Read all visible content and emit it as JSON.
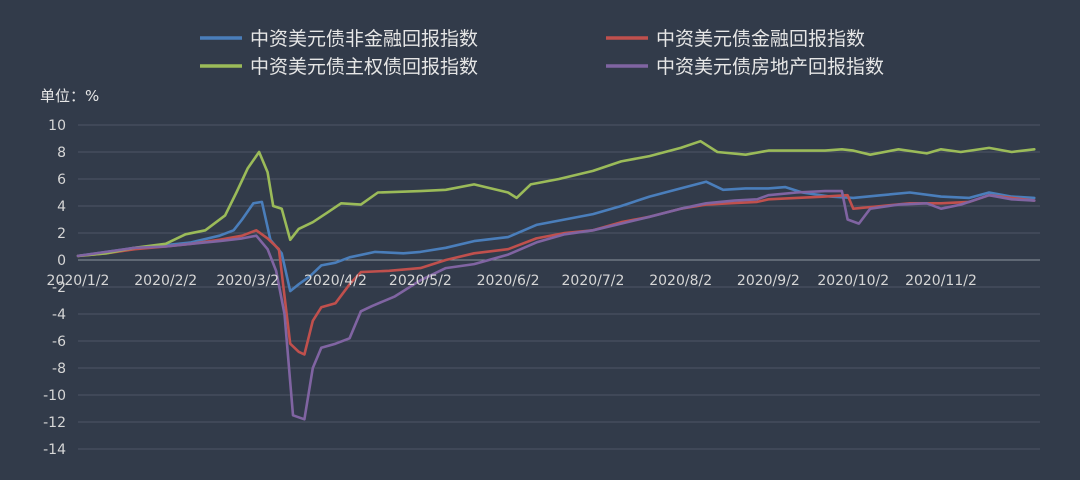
{
  "chart_data": {
    "type": "line",
    "title": "",
    "unit_label": "单位：%",
    "xlabel": "",
    "ylabel": "",
    "ylim": [
      -14,
      10
    ],
    "yticks": [
      10,
      8,
      6,
      4,
      2,
      0,
      -2,
      -4,
      -6,
      -8,
      -10,
      -12,
      -14
    ],
    "grid": true,
    "legend_position": "top",
    "x_tick_labels": [
      "2020/1/2",
      "2020/2/2",
      "2020/3/2",
      "2020/4/2",
      "2020/5/2",
      "2020/6/2",
      "2020/7/2",
      "2020/8/2",
      "2020/9/2",
      "2020/10/2",
      "2020/11/2"
    ],
    "x_tick_days": [
      0,
      31,
      60,
      91,
      121,
      152,
      182,
      213,
      244,
      274,
      305
    ],
    "x_range_days": [
      0,
      340
    ],
    "series": [
      {
        "name": "中资美元债非金融回报指数",
        "color": "#4a7ebb",
        "points": [
          [
            0,
            0.3
          ],
          [
            10,
            0.6
          ],
          [
            20,
            0.9
          ],
          [
            31,
            1.1
          ],
          [
            40,
            1.3
          ],
          [
            50,
            1.8
          ],
          [
            55,
            2.2
          ],
          [
            58,
            3.0
          ],
          [
            62,
            4.2
          ],
          [
            65,
            4.3
          ],
          [
            68,
            1.5
          ],
          [
            72,
            0.5
          ],
          [
            75,
            -2.3
          ],
          [
            78,
            -1.8
          ],
          [
            82,
            -1.2
          ],
          [
            86,
            -0.4
          ],
          [
            91,
            -0.2
          ],
          [
            96,
            0.2
          ],
          [
            105,
            0.6
          ],
          [
            115,
            0.5
          ],
          [
            121,
            0.6
          ],
          [
            130,
            0.9
          ],
          [
            140,
            1.4
          ],
          [
            152,
            1.7
          ],
          [
            162,
            2.6
          ],
          [
            172,
            3.0
          ],
          [
            182,
            3.4
          ],
          [
            192,
            4.0
          ],
          [
            202,
            4.7
          ],
          [
            213,
            5.3
          ],
          [
            222,
            5.8
          ],
          [
            228,
            5.2
          ],
          [
            236,
            5.3
          ],
          [
            244,
            5.3
          ],
          [
            250,
            5.4
          ],
          [
            256,
            5.0
          ],
          [
            266,
            4.7
          ],
          [
            274,
            4.6
          ],
          [
            284,
            4.8
          ],
          [
            294,
            5.0
          ],
          [
            305,
            4.7
          ],
          [
            315,
            4.6
          ],
          [
            322,
            5.0
          ],
          [
            330,
            4.7
          ],
          [
            338,
            4.6
          ]
        ]
      },
      {
        "name": "中资美元债金融回报指数",
        "color": "#c0504d",
        "points": [
          [
            0,
            0.3
          ],
          [
            10,
            0.5
          ],
          [
            20,
            0.8
          ],
          [
            31,
            1.0
          ],
          [
            40,
            1.2
          ],
          [
            50,
            1.5
          ],
          [
            58,
            1.8
          ],
          [
            63,
            2.2
          ],
          [
            67,
            1.6
          ],
          [
            71,
            0.8
          ],
          [
            75,
            -6.2
          ],
          [
            78,
            -6.8
          ],
          [
            80,
            -7.0
          ],
          [
            83,
            -4.5
          ],
          [
            86,
            -3.5
          ],
          [
            91,
            -3.2
          ],
          [
            96,
            -1.8
          ],
          [
            100,
            -0.9
          ],
          [
            110,
            -0.8
          ],
          [
            121,
            -0.6
          ],
          [
            130,
            0.0
          ],
          [
            140,
            0.5
          ],
          [
            152,
            0.8
          ],
          [
            162,
            1.6
          ],
          [
            172,
            2.0
          ],
          [
            182,
            2.2
          ],
          [
            192,
            2.8
          ],
          [
            202,
            3.2
          ],
          [
            213,
            3.8
          ],
          [
            222,
            4.1
          ],
          [
            230,
            4.2
          ],
          [
            240,
            4.3
          ],
          [
            244,
            4.5
          ],
          [
            254,
            4.6
          ],
          [
            264,
            4.7
          ],
          [
            272,
            4.8
          ],
          [
            274,
            3.8
          ],
          [
            284,
            4.0
          ],
          [
            294,
            4.2
          ],
          [
            305,
            4.2
          ],
          [
            315,
            4.3
          ],
          [
            322,
            4.8
          ],
          [
            330,
            4.6
          ],
          [
            338,
            4.4
          ]
        ]
      },
      {
        "name": "中资美元债主权债回报指数",
        "color": "#9bbb59",
        "points": [
          [
            0,
            0.3
          ],
          [
            10,
            0.5
          ],
          [
            20,
            0.9
          ],
          [
            31,
            1.2
          ],
          [
            38,
            1.9
          ],
          [
            45,
            2.2
          ],
          [
            52,
            3.3
          ],
          [
            56,
            5.0
          ],
          [
            60,
            6.8
          ],
          [
            64,
            8.0
          ],
          [
            67,
            6.5
          ],
          [
            69,
            4.0
          ],
          [
            72,
            3.8
          ],
          [
            75,
            1.5
          ],
          [
            78,
            2.3
          ],
          [
            83,
            2.8
          ],
          [
            88,
            3.5
          ],
          [
            93,
            4.2
          ],
          [
            100,
            4.1
          ],
          [
            106,
            5.0
          ],
          [
            121,
            5.1
          ],
          [
            130,
            5.2
          ],
          [
            140,
            5.6
          ],
          [
            152,
            5.0
          ],
          [
            155,
            4.6
          ],
          [
            160,
            5.6
          ],
          [
            170,
            6.0
          ],
          [
            182,
            6.6
          ],
          [
            192,
            7.3
          ],
          [
            202,
            7.7
          ],
          [
            213,
            8.3
          ],
          [
            220,
            8.8
          ],
          [
            226,
            8.0
          ],
          [
            236,
            7.8
          ],
          [
            244,
            8.1
          ],
          [
            254,
            8.1
          ],
          [
            264,
            8.1
          ],
          [
            270,
            8.2
          ],
          [
            274,
            8.1
          ],
          [
            280,
            7.8
          ],
          [
            290,
            8.2
          ],
          [
            300,
            7.9
          ],
          [
            305,
            8.2
          ],
          [
            312,
            8.0
          ],
          [
            322,
            8.3
          ],
          [
            330,
            8.0
          ],
          [
            338,
            8.2
          ]
        ]
      },
      {
        "name": "中资美元债房地产回报指数",
        "color": "#8064a2",
        "points": [
          [
            0,
            0.3
          ],
          [
            10,
            0.6
          ],
          [
            20,
            0.9
          ],
          [
            31,
            1.0
          ],
          [
            40,
            1.2
          ],
          [
            50,
            1.4
          ],
          [
            58,
            1.6
          ],
          [
            63,
            1.8
          ],
          [
            67,
            0.8
          ],
          [
            70,
            -0.8
          ],
          [
            73,
            -4.0
          ],
          [
            76,
            -11.5
          ],
          [
            80,
            -11.8
          ],
          [
            83,
            -8.0
          ],
          [
            86,
            -6.5
          ],
          [
            91,
            -6.2
          ],
          [
            96,
            -5.8
          ],
          [
            100,
            -3.8
          ],
          [
            104,
            -3.4
          ],
          [
            112,
            -2.7
          ],
          [
            121,
            -1.5
          ],
          [
            130,
            -0.6
          ],
          [
            140,
            -0.3
          ],
          [
            152,
            0.4
          ],
          [
            162,
            1.3
          ],
          [
            172,
            1.9
          ],
          [
            182,
            2.2
          ],
          [
            192,
            2.7
          ],
          [
            202,
            3.2
          ],
          [
            213,
            3.8
          ],
          [
            222,
            4.2
          ],
          [
            232,
            4.4
          ],
          [
            240,
            4.5
          ],
          [
            244,
            4.8
          ],
          [
            254,
            5.0
          ],
          [
            264,
            5.1
          ],
          [
            270,
            5.1
          ],
          [
            272,
            3.0
          ],
          [
            276,
            2.7
          ],
          [
            280,
            3.8
          ],
          [
            290,
            4.1
          ],
          [
            300,
            4.2
          ],
          [
            305,
            3.8
          ],
          [
            312,
            4.1
          ],
          [
            322,
            4.8
          ],
          [
            330,
            4.5
          ],
          [
            338,
            4.4
          ]
        ]
      }
    ]
  }
}
